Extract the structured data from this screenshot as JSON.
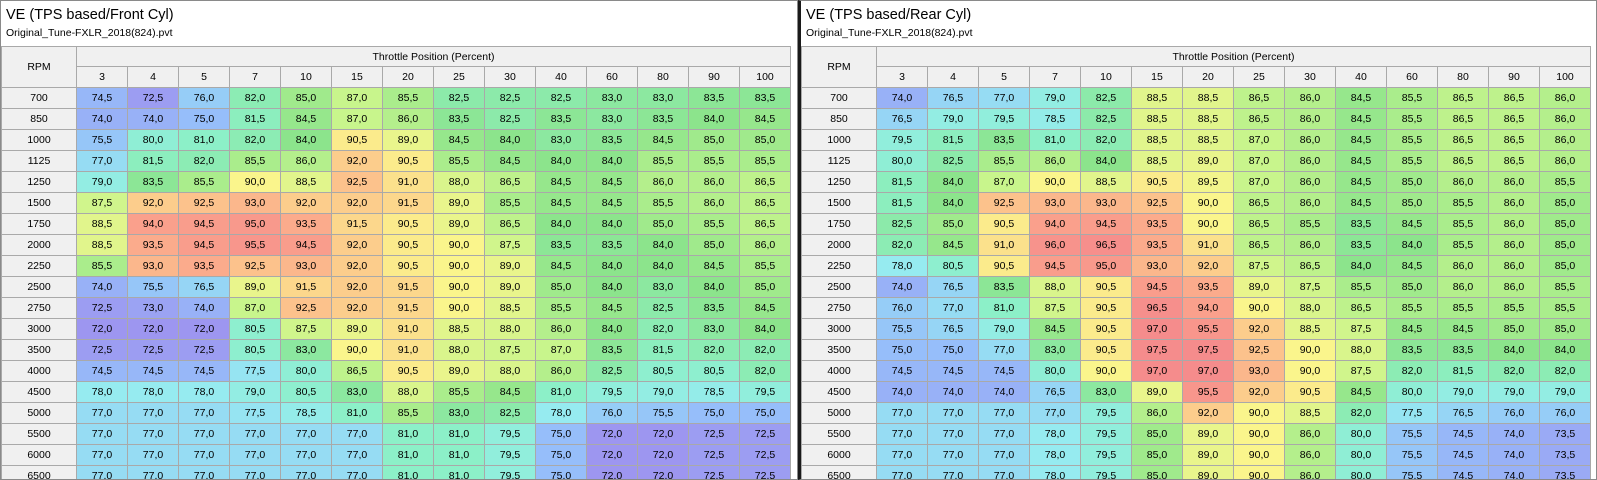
{
  "tables": [
    {
      "title": "VE (TPS based/Front Cyl)",
      "file": "Original_Tune-FXLR_2018(824).pvt",
      "row_axis_label": "RPM",
      "col_axis_label": "Throttle Position (Percent)",
      "columns": [
        "3",
        "4",
        "5",
        "7",
        "10",
        "15",
        "20",
        "25",
        "30",
        "40",
        "60",
        "80",
        "90",
        "100"
      ],
      "rows": [
        {
          "rpm": "700",
          "values": [
            "74,5",
            "72,5",
            "76,0",
            "82,0",
            "85,0",
            "87,0",
            "85,5",
            "82,5",
            "82,5",
            "82,5",
            "83,0",
            "83,0",
            "83,5",
            "83,5"
          ]
        },
        {
          "rpm": "850",
          "values": [
            "74,0",
            "74,0",
            "75,0",
            "81,5",
            "84,5",
            "87,0",
            "86,0",
            "83,5",
            "82,5",
            "83,5",
            "83,0",
            "83,5",
            "84,0",
            "84,5"
          ]
        },
        {
          "rpm": "1000",
          "values": [
            "75,5",
            "80,0",
            "81,0",
            "82,0",
            "84,0",
            "90,5",
            "89,0",
            "84,5",
            "84,0",
            "83,0",
            "83,5",
            "84,5",
            "85,0",
            "85,0"
          ]
        },
        {
          "rpm": "1125",
          "values": [
            "77,0",
            "81,5",
            "82,0",
            "85,5",
            "86,0",
            "92,0",
            "90,5",
            "85,5",
            "84,5",
            "84,0",
            "84,0",
            "85,5",
            "85,5",
            "85,5"
          ]
        },
        {
          "rpm": "1250",
          "values": [
            "79,0",
            "83,5",
            "85,5",
            "90,0",
            "88,5",
            "92,5",
            "91,0",
            "88,0",
            "86,5",
            "84,5",
            "84,5",
            "86,0",
            "86,0",
            "86,5"
          ]
        },
        {
          "rpm": "1500",
          "values": [
            "87,5",
            "92,0",
            "92,5",
            "93,0",
            "92,0",
            "92,0",
            "91,5",
            "89,0",
            "85,5",
            "84,5",
            "84,5",
            "85,5",
            "86,0",
            "86,5"
          ]
        },
        {
          "rpm": "1750",
          "values": [
            "88,5",
            "94,0",
            "94,5",
            "95,0",
            "93,5",
            "91,5",
            "90,5",
            "89,0",
            "86,5",
            "84,0",
            "84,0",
            "85,0",
            "85,5",
            "86,5"
          ]
        },
        {
          "rpm": "2000",
          "values": [
            "88,5",
            "93,5",
            "94,5",
            "95,5",
            "94,5",
            "92,0",
            "90,5",
            "90,0",
            "87,5",
            "83,5",
            "83,5",
            "84,0",
            "85,0",
            "86,0"
          ]
        },
        {
          "rpm": "2250",
          "values": [
            "85,5",
            "93,0",
            "93,5",
            "92,5",
            "93,0",
            "92,0",
            "90,5",
            "90,0",
            "89,0",
            "84,5",
            "84,0",
            "84,0",
            "84,5",
            "85,5"
          ]
        },
        {
          "rpm": "2500",
          "values": [
            "74,0",
            "75,5",
            "76,5",
            "89,0",
            "91,5",
            "92,0",
            "91,5",
            "90,0",
            "89,0",
            "85,0",
            "84,0",
            "83,0",
            "84,0",
            "85,0"
          ]
        },
        {
          "rpm": "2750",
          "values": [
            "72,5",
            "73,0",
            "74,0",
            "87,0",
            "92,5",
            "92,0",
            "91,5",
            "90,0",
            "88,5",
            "85,5",
            "84,5",
            "82,5",
            "83,5",
            "84,5"
          ]
        },
        {
          "rpm": "3000",
          "values": [
            "72,0",
            "72,0",
            "72,0",
            "80,5",
            "87,5",
            "89,0",
            "91,0",
            "88,5",
            "88,0",
            "86,0",
            "84,0",
            "82,0",
            "83,0",
            "84,0"
          ]
        },
        {
          "rpm": "3500",
          "values": [
            "72,5",
            "72,5",
            "72,5",
            "80,5",
            "83,0",
            "90,0",
            "91,0",
            "88,0",
            "87,5",
            "87,0",
            "83,5",
            "81,5",
            "82,0",
            "82,0"
          ]
        },
        {
          "rpm": "4000",
          "values": [
            "74,5",
            "74,5",
            "74,5",
            "77,5",
            "80,0",
            "86,5",
            "90,5",
            "89,0",
            "88,0",
            "86,0",
            "82,5",
            "80,5",
            "80,5",
            "82,0"
          ]
        },
        {
          "rpm": "4500",
          "values": [
            "78,0",
            "78,0",
            "78,0",
            "79,0",
            "80,5",
            "83,0",
            "88,0",
            "85,5",
            "84,5",
            "81,0",
            "79,5",
            "79,0",
            "78,5",
            "79,5"
          ]
        },
        {
          "rpm": "5000",
          "values": [
            "77,0",
            "77,0",
            "77,0",
            "77,5",
            "78,5",
            "81,0",
            "85,5",
            "83,0",
            "82,5",
            "78,0",
            "76,0",
            "75,5",
            "75,0",
            "75,0"
          ]
        },
        {
          "rpm": "5500",
          "values": [
            "77,0",
            "77,0",
            "77,0",
            "77,0",
            "77,0",
            "77,0",
            "81,0",
            "81,0",
            "79,5",
            "75,0",
            "72,0",
            "72,0",
            "72,5",
            "72,5"
          ]
        },
        {
          "rpm": "6000",
          "values": [
            "77,0",
            "77,0",
            "77,0",
            "77,0",
            "77,0",
            "77,0",
            "81,0",
            "81,0",
            "79,5",
            "75,0",
            "72,0",
            "72,0",
            "72,5",
            "72,5"
          ]
        },
        {
          "rpm": "6500",
          "values": [
            "77,0",
            "77,0",
            "77,0",
            "77,0",
            "77,0",
            "77,0",
            "81,0",
            "81,0",
            "79,5",
            "75,0",
            "72,0",
            "72,0",
            "72,5",
            "72,5"
          ]
        }
      ]
    },
    {
      "title": "VE (TPS based/Rear Cyl)",
      "file": "Original_Tune-FXLR_2018(824).pvt",
      "row_axis_label": "RPM",
      "col_axis_label": "Throttle Position (Percent)",
      "columns": [
        "3",
        "4",
        "5",
        "7",
        "10",
        "15",
        "20",
        "25",
        "30",
        "40",
        "60",
        "80",
        "90",
        "100"
      ],
      "rows": [
        {
          "rpm": "700",
          "values": [
            "74,0",
            "76,5",
            "77,0",
            "79,0",
            "82,5",
            "88,5",
            "88,5",
            "86,5",
            "86,0",
            "84,5",
            "85,5",
            "86,5",
            "86,5",
            "86,0"
          ]
        },
        {
          "rpm": "850",
          "values": [
            "76,5",
            "79,0",
            "79,5",
            "78,5",
            "82,5",
            "88,5",
            "88,5",
            "86,5",
            "86,0",
            "84,5",
            "85,5",
            "86,5",
            "86,5",
            "86,0"
          ]
        },
        {
          "rpm": "1000",
          "values": [
            "79,5",
            "81,5",
            "83,5",
            "81,0",
            "82,0",
            "88,5",
            "88,5",
            "87,0",
            "86,0",
            "84,5",
            "85,5",
            "86,5",
            "86,5",
            "86,0"
          ]
        },
        {
          "rpm": "1125",
          "values": [
            "80,0",
            "82,5",
            "85,5",
            "86,0",
            "84,0",
            "88,5",
            "89,0",
            "87,0",
            "86,0",
            "84,5",
            "85,5",
            "86,5",
            "86,5",
            "86,0"
          ]
        },
        {
          "rpm": "1250",
          "values": [
            "81,5",
            "84,0",
            "87,0",
            "90,0",
            "88,5",
            "90,5",
            "89,5",
            "87,0",
            "86,0",
            "84,5",
            "85,0",
            "86,0",
            "86,0",
            "85,5"
          ]
        },
        {
          "rpm": "1500",
          "values": [
            "81,5",
            "84,0",
            "92,5",
            "93,0",
            "93,0",
            "92,5",
            "90,0",
            "86,5",
            "86,0",
            "84,5",
            "85,0",
            "85,5",
            "86,0",
            "85,0"
          ]
        },
        {
          "rpm": "1750",
          "values": [
            "82,5",
            "85,0",
            "90,5",
            "94,0",
            "94,5",
            "93,5",
            "90,0",
            "86,5",
            "85,5",
            "83,5",
            "84,5",
            "85,5",
            "86,0",
            "85,0"
          ]
        },
        {
          "rpm": "2000",
          "values": [
            "82,0",
            "84,5",
            "91,0",
            "96,0",
            "96,5",
            "93,5",
            "91,0",
            "86,5",
            "86,0",
            "83,5",
            "84,0",
            "85,5",
            "86,0",
            "85,0"
          ]
        },
        {
          "rpm": "2250",
          "values": [
            "78,0",
            "80,5",
            "90,5",
            "94,5",
            "95,0",
            "93,0",
            "92,0",
            "87,5",
            "86,5",
            "84,0",
            "84,5",
            "86,0",
            "86,0",
            "85,0"
          ]
        },
        {
          "rpm": "2500",
          "values": [
            "74,0",
            "76,5",
            "83,5",
            "88,0",
            "90,5",
            "94,5",
            "93,5",
            "89,0",
            "87,5",
            "85,5",
            "85,0",
            "86,0",
            "86,0",
            "85,5"
          ]
        },
        {
          "rpm": "2750",
          "values": [
            "76,0",
            "77,0",
            "81,0",
            "87,5",
            "90,5",
            "96,5",
            "94,0",
            "90,0",
            "88,0",
            "86,5",
            "85,5",
            "85,5",
            "85,5",
            "85,5"
          ]
        },
        {
          "rpm": "3000",
          "values": [
            "75,5",
            "76,5",
            "79,0",
            "84,5",
            "90,5",
            "97,0",
            "95,5",
            "92,0",
            "88,5",
            "87,5",
            "84,5",
            "84,5",
            "85,0",
            "85,0"
          ]
        },
        {
          "rpm": "3500",
          "values": [
            "75,0",
            "75,0",
            "77,0",
            "83,0",
            "90,5",
            "97,5",
            "97,5",
            "92,5",
            "90,0",
            "88,0",
            "83,5",
            "83,5",
            "84,0",
            "84,0"
          ]
        },
        {
          "rpm": "4000",
          "values": [
            "74,5",
            "74,5",
            "74,5",
            "80,0",
            "90,0",
            "97,0",
            "97,0",
            "93,0",
            "90,0",
            "87,5",
            "82,0",
            "81,5",
            "82,0",
            "82,0"
          ]
        },
        {
          "rpm": "4500",
          "values": [
            "74,0",
            "74,0",
            "74,0",
            "76,5",
            "83,0",
            "89,0",
            "95,5",
            "92,0",
            "90,5",
            "84,5",
            "80,0",
            "79,0",
            "79,0",
            "79,0"
          ]
        },
        {
          "rpm": "5000",
          "values": [
            "77,0",
            "77,0",
            "77,0",
            "77,0",
            "79,5",
            "86,0",
            "92,0",
            "90,0",
            "88,5",
            "82,0",
            "77,5",
            "76,5",
            "76,0",
            "76,0"
          ]
        },
        {
          "rpm": "5500",
          "values": [
            "77,0",
            "77,0",
            "77,0",
            "78,0",
            "79,5",
            "85,0",
            "89,0",
            "90,0",
            "86,0",
            "80,0",
            "75,5",
            "74,5",
            "74,0",
            "73,5"
          ]
        },
        {
          "rpm": "6000",
          "values": [
            "77,0",
            "77,0",
            "77,0",
            "78,0",
            "79,5",
            "85,0",
            "89,0",
            "90,0",
            "86,0",
            "80,0",
            "75,5",
            "74,5",
            "74,0",
            "73,5"
          ]
        },
        {
          "rpm": "6500",
          "values": [
            "77,0",
            "77,0",
            "77,0",
            "78,0",
            "79,5",
            "85,0",
            "89,0",
            "90,0",
            "86,0",
            "80,0",
            "75,5",
            "74,5",
            "74,0",
            "73,5"
          ]
        }
      ]
    }
  ]
}
